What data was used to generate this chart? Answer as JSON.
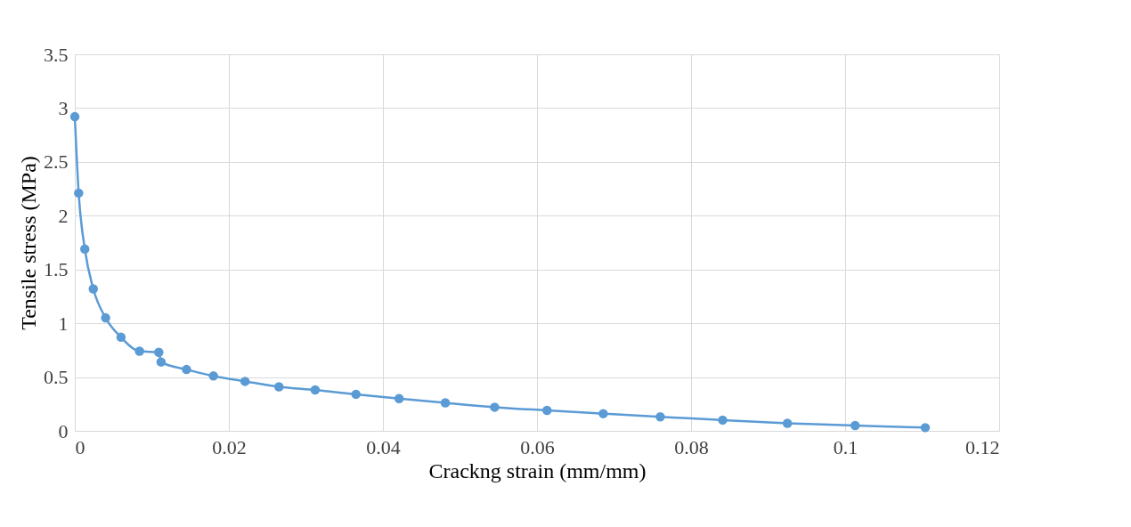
{
  "chart_data": {
    "type": "line",
    "xlabel": "Crackng strain (mm/mm)",
    "ylabel": "Tensile stress (MPa)",
    "x": [
      0,
      0.0005,
      0.0013,
      0.0024,
      0.004,
      0.006,
      0.0084,
      0.0109,
      0.0112,
      0.0145,
      0.018,
      0.0221,
      0.0265,
      0.0312,
      0.0365,
      0.0421,
      0.0481,
      0.0545,
      0.0613,
      0.0686,
      0.076,
      0.0841,
      0.0925,
      0.1013,
      0.1104
    ],
    "series": [
      {
        "color": "#5b9bd5",
        "values": [
          2.92,
          2.21,
          1.69,
          1.32,
          1.05,
          0.87,
          0.74,
          0.73,
          0.64,
          0.57,
          0.51,
          0.46,
          0.41,
          0.38,
          0.34,
          0.3,
          0.26,
          0.22,
          0.19,
          0.16,
          0.13,
          0.1,
          0.07,
          0.05,
          0.03
        ]
      }
    ],
    "xlim": [
      0,
      0.12
    ],
    "xticks": [
      0,
      0.02,
      0.04,
      0.06,
      0.08,
      0.1,
      0.12
    ],
    "ylim": [
      0,
      3.5
    ],
    "yticks": [
      0,
      0.5,
      1,
      1.5,
      2,
      2.5,
      3,
      3.5
    ],
    "grid": true,
    "marker": "circle",
    "line_style": "solid"
  }
}
